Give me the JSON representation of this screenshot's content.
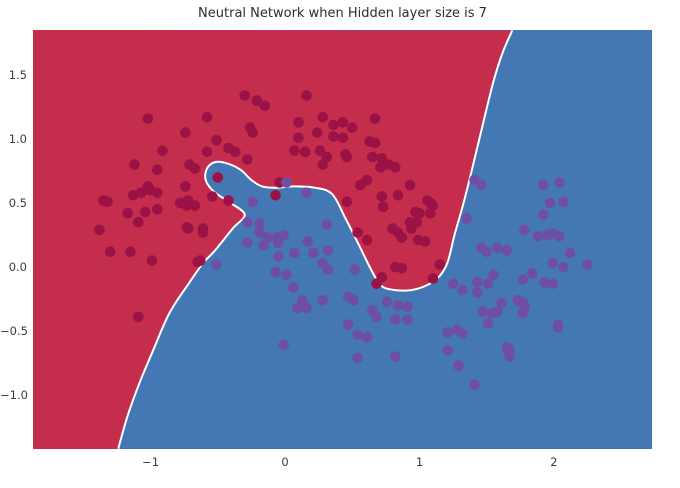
{
  "chart_data": {
    "type": "scatter",
    "title": "Neutral Network when Hidden layer size is 7",
    "xlabel": "",
    "ylabel": "",
    "grid": false,
    "legend": "none",
    "xlim": [
      -1.874,
      2.729
    ],
    "ylim": [
      -1.422,
      1.852
    ],
    "x_ticks": [
      -1,
      0,
      1,
      2
    ],
    "x_tick_labels": [
      "−1",
      "0",
      "1",
      "2"
    ],
    "y_ticks": [
      1.5,
      1.0,
      0.5,
      0.0,
      -0.5,
      -1.0
    ],
    "y_tick_labels": [
      "1.5",
      "1.0",
      "0.5",
      "0.0",
      "−0.5",
      "−1.0"
    ],
    "colors": {
      "region_class0": "#c42d4c",
      "region_class1": "#4478b4",
      "points_class0": "#9a1246",
      "points_class1": "#6e4fa3",
      "boundary_line": "#ffffff",
      "title_text": "#2d2d2d",
      "tick_text": "#3c3c3c"
    },
    "decision_boundary": [
      [
        -1.24,
        -1.42
      ],
      [
        -1.17,
        -1.16
      ],
      [
        -1.08,
        -0.9
      ],
      [
        -0.98,
        -0.65
      ],
      [
        -0.86,
        -0.36
      ],
      [
        -0.71,
        -0.12
      ],
      [
        -0.61,
        0.03
      ],
      [
        -0.52,
        0.13
      ],
      [
        -0.39,
        0.3
      ],
      [
        -0.3,
        0.41
      ],
      [
        -0.42,
        0.51
      ],
      [
        -0.53,
        0.59
      ],
      [
        -0.59,
        0.68
      ],
      [
        -0.58,
        0.77
      ],
      [
        -0.52,
        0.82
      ],
      [
        -0.43,
        0.81
      ],
      [
        -0.33,
        0.76
      ],
      [
        -0.25,
        0.68
      ],
      [
        -0.17,
        0.63
      ],
      [
        -0.07,
        0.62
      ],
      [
        0.07,
        0.63
      ],
      [
        0.22,
        0.62
      ],
      [
        0.35,
        0.57
      ],
      [
        0.45,
        0.38
      ],
      [
        0.56,
        0.15
      ],
      [
        0.65,
        -0.04
      ],
      [
        0.72,
        -0.15
      ],
      [
        0.82,
        -0.18
      ],
      [
        0.94,
        -0.18
      ],
      [
        1.06,
        -0.14
      ],
      [
        1.15,
        -0.07
      ],
      [
        1.21,
        0.04
      ],
      [
        1.26,
        0.25
      ],
      [
        1.32,
        0.47
      ],
      [
        1.39,
        0.76
      ],
      [
        1.47,
        1.11
      ],
      [
        1.55,
        1.45
      ],
      [
        1.62,
        1.68
      ],
      [
        1.69,
        1.85
      ]
    ],
    "series": [
      {
        "name": "class-0-dark-red",
        "color": "#9a1246",
        "points": [
          [
            -0.3,
            1.34
          ],
          [
            -0.21,
            1.3
          ],
          [
            -0.15,
            1.26
          ],
          [
            0.16,
            1.34
          ],
          [
            -1.02,
            1.16
          ],
          [
            -0.58,
            1.17
          ],
          [
            -0.26,
            1.09
          ],
          [
            -0.24,
            1.05
          ],
          [
            0.1,
            1.13
          ],
          [
            0.28,
            1.17
          ],
          [
            0.36,
            1.11
          ],
          [
            0.43,
            1.13
          ],
          [
            0.5,
            1.09
          ],
          [
            0.36,
            1.02
          ],
          [
            0.43,
            1.01
          ],
          [
            0.63,
            0.98
          ],
          [
            0.67,
            1.16
          ],
          [
            0.67,
            0.97
          ],
          [
            -0.74,
            1.05
          ],
          [
            -0.51,
            0.99
          ],
          [
            0.1,
            1.01
          ],
          [
            0.24,
            1.05
          ],
          [
            -0.91,
            0.91
          ],
          [
            -0.58,
            0.9
          ],
          [
            -0.42,
            0.93
          ],
          [
            -0.37,
            0.9
          ],
          [
            -0.28,
            0.84
          ],
          [
            0.07,
            0.91
          ],
          [
            0.15,
            0.9
          ],
          [
            0.26,
            0.91
          ],
          [
            0.31,
            0.86
          ],
          [
            0.28,
            0.8
          ],
          [
            0.45,
            0.88
          ],
          [
            0.65,
            0.86
          ],
          [
            -1.12,
            0.8
          ],
          [
            -0.95,
            0.76
          ],
          [
            -0.71,
            0.8
          ],
          [
            -0.67,
            0.77
          ],
          [
            -0.5,
            0.7
          ],
          [
            -0.04,
            0.66
          ],
          [
            -0.07,
            0.56
          ],
          [
            0.61,
            0.68
          ],
          [
            -1.35,
            0.52
          ],
          [
            -1.13,
            0.56
          ],
          [
            -1.0,
            0.6
          ],
          [
            -0.78,
            0.5
          ],
          [
            -0.73,
            0.51
          ],
          [
            -0.54,
            0.55
          ],
          [
            -0.42,
            0.52
          ],
          [
            -1.32,
            0.51
          ],
          [
            -1.07,
            0.58
          ],
          [
            -1.02,
            0.63
          ],
          [
            -0.95,
            0.58
          ],
          [
            -1.17,
            0.42
          ],
          [
            -1.04,
            0.43
          ],
          [
            -0.95,
            0.45
          ],
          [
            -1.09,
            0.35
          ],
          [
            -0.74,
            0.63
          ],
          [
            -0.72,
            0.52
          ],
          [
            -0.73,
            0.48
          ],
          [
            -0.67,
            0.48
          ],
          [
            -1.38,
            0.29
          ],
          [
            -0.72,
            0.3
          ],
          [
            -0.61,
            0.3
          ],
          [
            -1.3,
            0.12
          ],
          [
            -1.15,
            0.12
          ],
          [
            -0.99,
            0.05
          ],
          [
            -0.63,
            0.05
          ],
          [
            -1.09,
            -0.39
          ],
          [
            -0.73,
            0.31
          ],
          [
            -0.61,
            0.27
          ],
          [
            -0.65,
            0.04
          ],
          [
            0.46,
            0.86
          ],
          [
            0.72,
            0.85
          ],
          [
            0.77,
            0.8
          ],
          [
            0.71,
            0.78
          ],
          [
            0.82,
            0.78
          ],
          [
            0.56,
            0.64
          ],
          [
            0.93,
            0.64
          ],
          [
            0.72,
            0.55
          ],
          [
            0.46,
            0.51
          ],
          [
            0.84,
            0.56
          ],
          [
            1.06,
            0.52
          ],
          [
            1.1,
            0.48
          ],
          [
            0.73,
            0.47
          ],
          [
            0.97,
            0.43
          ],
          [
            1.0,
            0.42
          ],
          [
            0.93,
            0.35
          ],
          [
            0.98,
            0.35
          ],
          [
            0.94,
            0.3
          ],
          [
            0.8,
            0.3
          ],
          [
            0.84,
            0.27
          ],
          [
            0.54,
            0.27
          ],
          [
            0.61,
            0.21
          ],
          [
            0.87,
            0.23
          ],
          [
            0.99,
            0.21
          ],
          [
            1.04,
            0.2
          ],
          [
            0.82,
            0.0
          ],
          [
            0.87,
            -0.01
          ],
          [
            1.15,
            0.02
          ],
          [
            0.72,
            -0.08
          ],
          [
            0.68,
            -0.13
          ],
          [
            1.1,
            -0.09
          ],
          [
            1.08,
            0.5
          ],
          [
            1.08,
            0.42
          ]
        ]
      },
      {
        "name": "class-1-purple",
        "color": "#6e4fa3",
        "points": [
          [
            -0.24,
            0.51
          ],
          [
            -0.28,
            0.35
          ],
          [
            -0.19,
            0.34
          ],
          [
            0.01,
            0.66
          ],
          [
            0.16,
            0.58
          ],
          [
            -0.51,
            0.02
          ],
          [
            -0.19,
            0.27
          ],
          [
            -0.13,
            0.23
          ],
          [
            -0.06,
            0.23
          ],
          [
            -0.01,
            0.25
          ],
          [
            -0.28,
            0.19
          ],
          [
            -0.16,
            0.17
          ],
          [
            -0.05,
            0.19
          ],
          [
            0.17,
            0.2
          ],
          [
            0.21,
            0.11
          ],
          [
            0.31,
            0.33
          ],
          [
            0.32,
            0.13
          ],
          [
            -0.05,
            0.08
          ],
          [
            0.07,
            0.11
          ],
          [
            0.28,
            0.03
          ],
          [
            0.32,
            -0.02
          ],
          [
            -0.07,
            -0.04
          ],
          [
            0.01,
            -0.06
          ],
          [
            0.06,
            -0.16
          ],
          [
            0.13,
            -0.26
          ],
          [
            0.16,
            -0.32
          ],
          [
            0.09,
            -0.32
          ],
          [
            0.28,
            -0.26
          ],
          [
            0.47,
            -0.23
          ],
          [
            0.51,
            -0.26
          ],
          [
            0.52,
            -0.02
          ],
          [
            0.76,
            -0.27
          ],
          [
            0.84,
            -0.3
          ],
          [
            0.91,
            -0.31
          ],
          [
            0.65,
            -0.34
          ],
          [
            0.68,
            -0.39
          ],
          [
            0.82,
            -0.41
          ],
          [
            0.91,
            -0.41
          ],
          [
            0.47,
            -0.45
          ],
          [
            0.54,
            -0.53
          ],
          [
            0.61,
            -0.55
          ],
          [
            0.82,
            -0.7
          ],
          [
            0.54,
            -0.71
          ],
          [
            -0.01,
            -0.61
          ],
          [
            1.41,
            0.68
          ],
          [
            1.46,
            0.64
          ],
          [
            1.35,
            0.38
          ],
          [
            1.46,
            0.15
          ],
          [
            1.5,
            0.12
          ],
          [
            1.58,
            0.15
          ],
          [
            1.65,
            0.13
          ],
          [
            1.55,
            -0.06
          ],
          [
            1.25,
            -0.13
          ],
          [
            1.32,
            -0.18
          ],
          [
            1.43,
            -0.2
          ],
          [
            1.43,
            -0.12
          ],
          [
            1.51,
            -0.13
          ],
          [
            1.61,
            -0.28
          ],
          [
            1.73,
            -0.26
          ],
          [
            1.77,
            -0.28
          ],
          [
            1.47,
            -0.35
          ],
          [
            1.54,
            -0.36
          ],
          [
            1.58,
            -0.35
          ],
          [
            1.51,
            -0.44
          ],
          [
            1.21,
            -0.51
          ],
          [
            1.28,
            -0.49
          ],
          [
            1.32,
            -0.52
          ],
          [
            1.21,
            -0.65
          ],
          [
            1.65,
            -0.63
          ],
          [
            1.66,
            -0.66
          ],
          [
            2.03,
            -0.45
          ],
          [
            1.41,
            -0.92
          ],
          [
            1.29,
            -0.77
          ],
          [
            1.92,
            0.64
          ],
          [
            2.04,
            0.66
          ],
          [
            1.97,
            0.5
          ],
          [
            2.07,
            0.51
          ],
          [
            1.92,
            0.41
          ],
          [
            1.78,
            0.29
          ],
          [
            1.88,
            0.24
          ],
          [
            1.95,
            0.25
          ],
          [
            1.99,
            0.26
          ],
          [
            2.04,
            0.24
          ],
          [
            2.12,
            0.11
          ],
          [
            1.99,
            0.03
          ],
          [
            2.07,
            0.0
          ],
          [
            2.25,
            0.02
          ],
          [
            1.84,
            -0.05
          ],
          [
            1.77,
            -0.1
          ],
          [
            1.93,
            -0.12
          ],
          [
            1.99,
            -0.13
          ],
          [
            1.75,
            -0.27
          ],
          [
            1.78,
            -0.31
          ],
          [
            1.77,
            -0.36
          ],
          [
            2.03,
            -0.47
          ],
          [
            1.67,
            -0.65
          ],
          [
            1.67,
            -0.7
          ]
        ]
      }
    ]
  }
}
